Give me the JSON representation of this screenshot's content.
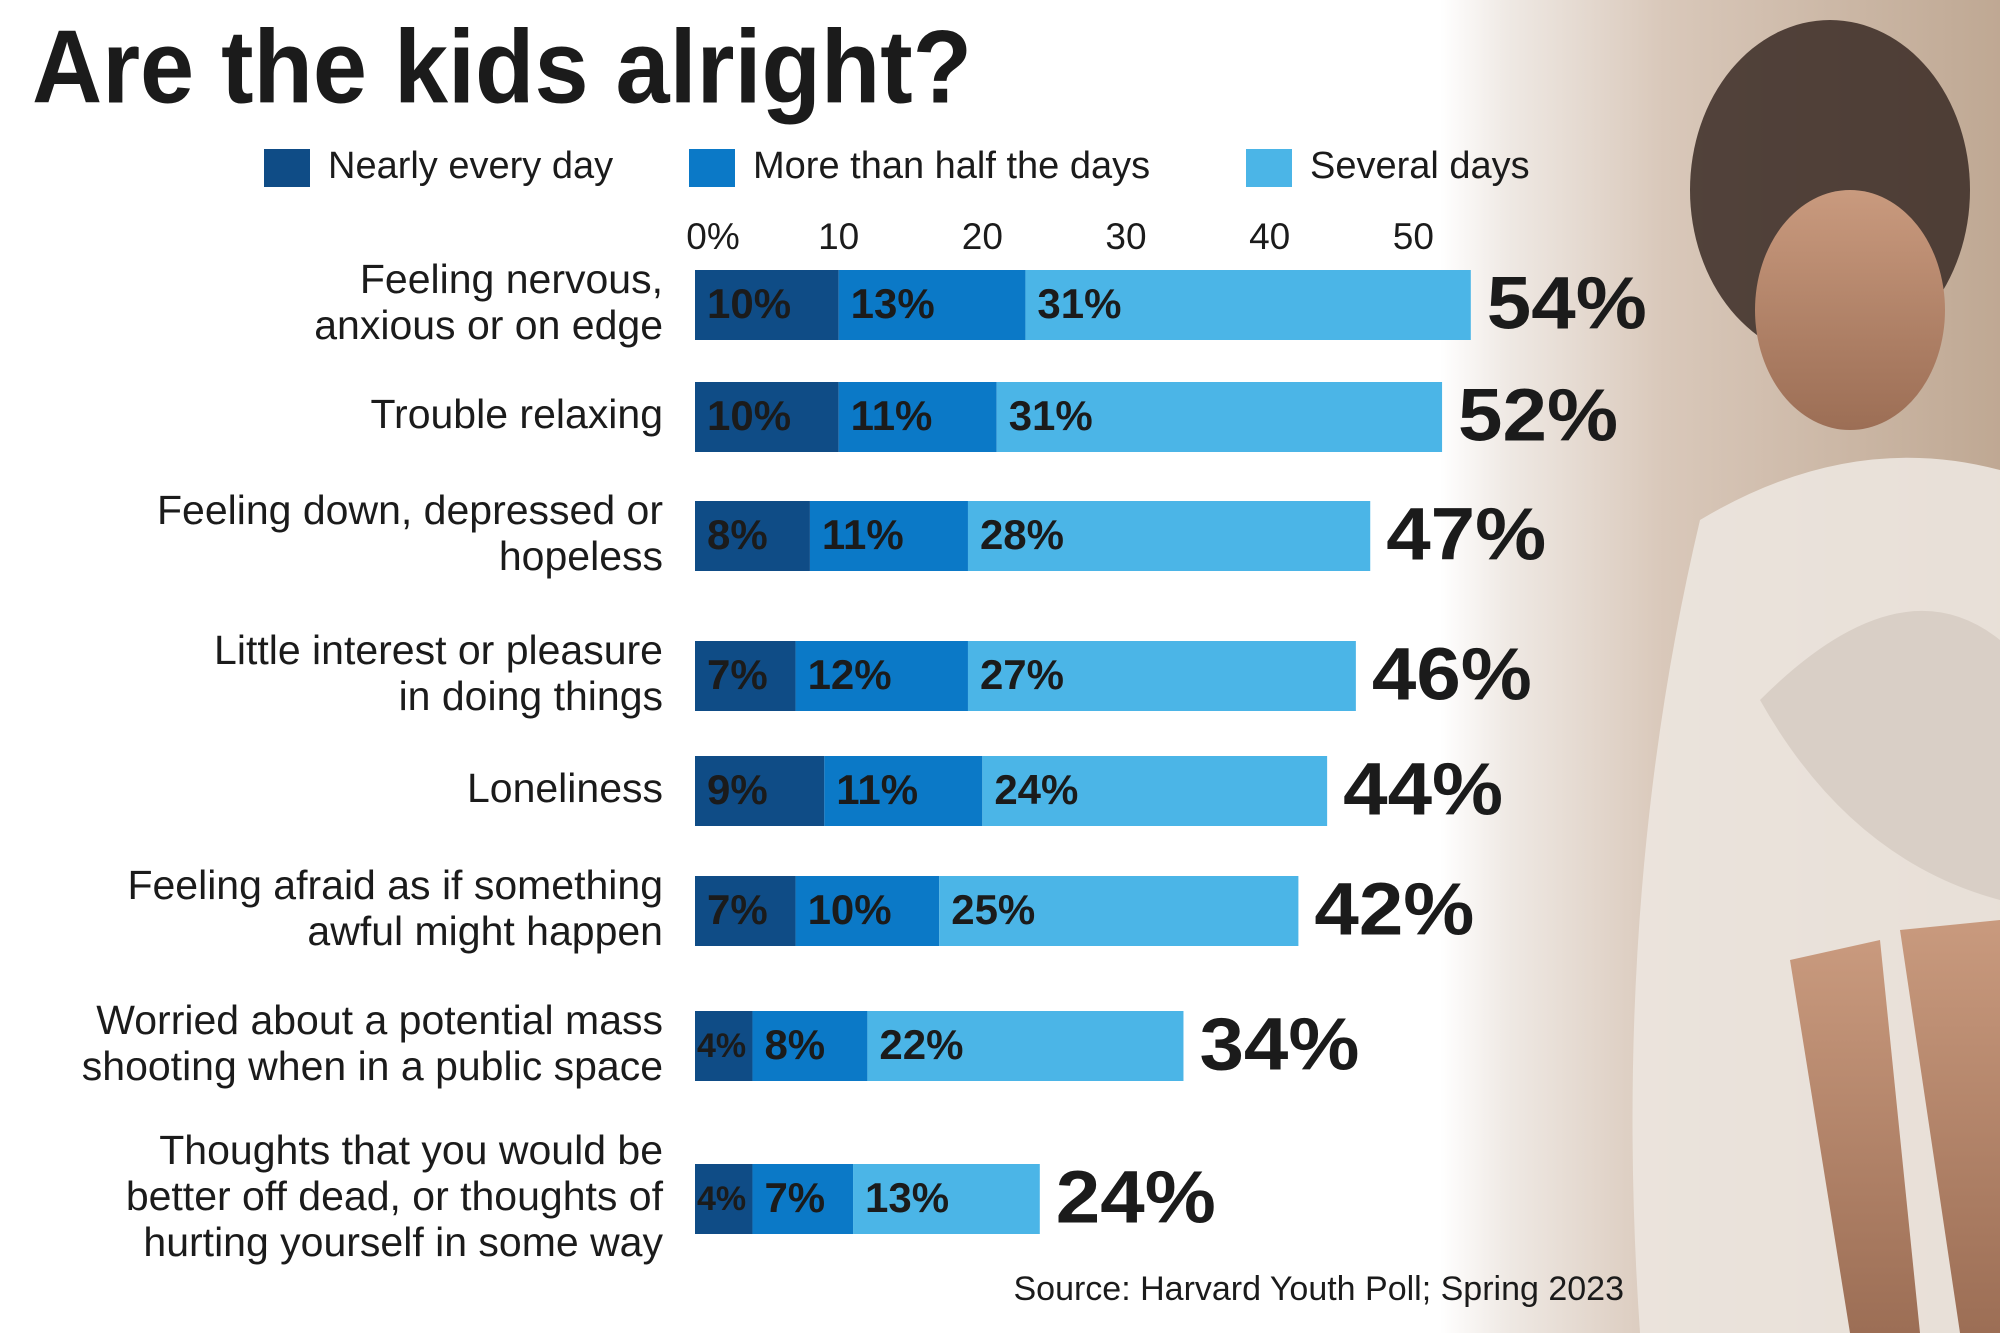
{
  "chart_data": {
    "type": "stacked-bar",
    "title": "Are the kids alright?",
    "categories": [
      [
        "Feeling nervous,",
        "anxious or on edge"
      ],
      [
        "Trouble relaxing"
      ],
      [
        "Feeling down, depressed or",
        "hopeless"
      ],
      [
        "Little interest or pleasure",
        "in doing things"
      ],
      [
        "Loneliness"
      ],
      [
        "Feeling afraid as if something",
        "awful might happen"
      ],
      [
        "Worried about a potential mass",
        "shooting when in a public space"
      ],
      [
        "Thoughts that you would be",
        "better off dead, or thoughts of",
        "hurting yourself in some way"
      ]
    ],
    "series": [
      {
        "name": "Nearly every day",
        "color": "#0f4c86",
        "values": [
          10,
          10,
          8,
          7,
          9,
          7,
          4,
          4
        ],
        "value_labels": [
          "10%",
          "10%",
          "8%",
          "7%",
          "9%",
          "7%",
          "4%",
          "4%"
        ]
      },
      {
        "name": "More than half the days",
        "color": "#0b79c7",
        "values": [
          13,
          11,
          11,
          12,
          11,
          10,
          8,
          7
        ],
        "value_labels": [
          "13%",
          "11%",
          "11%",
          "12%",
          "11%",
          "10%",
          "8%",
          "7%"
        ]
      },
      {
        "name": "Several days",
        "color": "#4bb5e7",
        "values": [
          31,
          31,
          28,
          27,
          24,
          25,
          22,
          13
        ],
        "value_labels": [
          "31%",
          "31%",
          "28%",
          "27%",
          "24%",
          "25%",
          "22%",
          "13%"
        ]
      }
    ],
    "totals": {
      "values": [
        54,
        52,
        47,
        46,
        44,
        42,
        34,
        24
      ],
      "value_labels": [
        "54%",
        "52%",
        "47%",
        "46%",
        "44%",
        "42%",
        "34%",
        "24%"
      ]
    },
    "xlim": [
      0,
      60
    ],
    "xticks": [
      {
        "value": 0,
        "label": "0%"
      },
      10,
      20,
      30,
      40,
      50
    ],
    "source": "Source: Harvard Youth Poll; Spring 2023"
  }
}
